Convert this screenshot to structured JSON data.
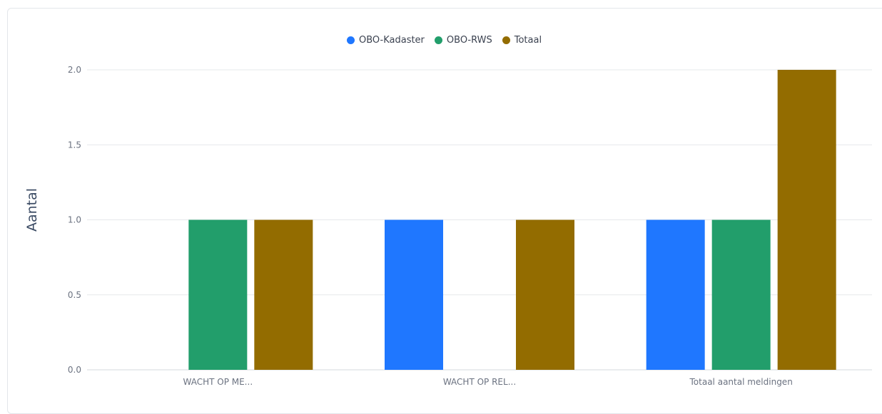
{
  "chart_data": {
    "type": "bar",
    "ylabel": "Aantal",
    "xlabel": "",
    "ylim": [
      0,
      2.0
    ],
    "yticks": [
      "0.0",
      "0.5",
      "1.0",
      "1.5",
      "2.0"
    ],
    "categories": [
      "WACHT OP ME...",
      "WACHT OP REL...",
      "Totaal aantal meldingen"
    ],
    "series": [
      {
        "name": "OBO-Kadaster",
        "color": "#1f77ff",
        "values": [
          0,
          1,
          1
        ]
      },
      {
        "name": "OBO-RWS",
        "color": "#229e6b",
        "values": [
          1,
          0,
          1
        ]
      },
      {
        "name": "Totaal",
        "color": "#936c00",
        "values": [
          1,
          1,
          2
        ]
      }
    ],
    "grid": true,
    "legend_position": "top-center"
  }
}
